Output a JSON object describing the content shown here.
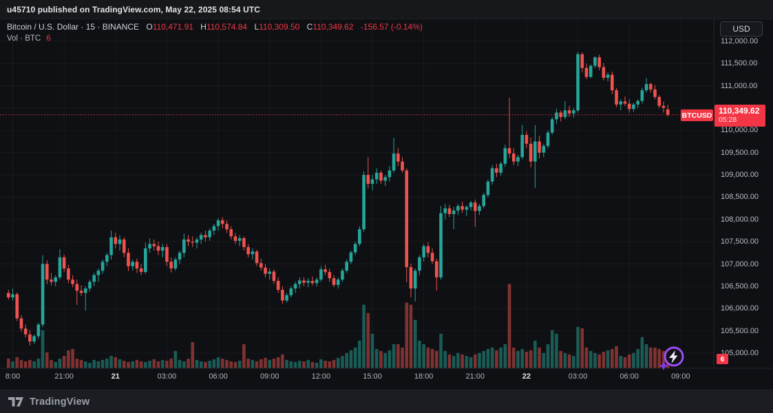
{
  "publish_bar": {
    "text": "u45710 published on TradingView.com, May 22, 2025 08:54 UTC"
  },
  "legend": {
    "symbol_title": "Bitcoin / U.S. Dollar · 15 · BINANCE",
    "ohlc": {
      "o_label": "O",
      "o": "110,471.91",
      "h_label": "H",
      "h": "110,574.84",
      "l_label": "L",
      "l": "110,309.50",
      "c_label": "C",
      "c": "110,349.62",
      "change": "-156.57 (-0.14%)"
    },
    "volume_row": {
      "label": "Vol · BTC",
      "value": "6"
    }
  },
  "price_axis": {
    "currency_button": "USD",
    "ticks": [
      {
        "label": "112,000.00",
        "price": 112000
      },
      {
        "label": "111,500.00",
        "price": 111500
      },
      {
        "label": "111,000.00",
        "price": 111000
      },
      {
        "label": "110,500.00",
        "price": 110500
      },
      {
        "label": "110,000.00",
        "price": 110000
      },
      {
        "label": "109,500.00",
        "price": 109500
      },
      {
        "label": "109,000.00",
        "price": 109000
      },
      {
        "label": "108,500.00",
        "price": 108500
      },
      {
        "label": "108,000.00",
        "price": 108000
      },
      {
        "label": "107,500.00",
        "price": 107500
      },
      {
        "label": "107,000.00",
        "price": 107000
      },
      {
        "label": "106,500.00",
        "price": 106500
      },
      {
        "label": "106,000.00",
        "price": 106000
      },
      {
        "label": "105,500.00",
        "price": 105500
      },
      {
        "label": "105,000.00",
        "price": 105000
      }
    ],
    "last_price_badge": {
      "value": "110,349.62",
      "countdown": "05:28",
      "price": 110349.62
    },
    "symbol_tag": "BTCUSD",
    "volume_badge": "6"
  },
  "time_axis": {
    "labels": [
      {
        "text": "8:00",
        "index": 1,
        "bold": false
      },
      {
        "text": "21:00",
        "index": 13,
        "bold": false
      },
      {
        "text": "21",
        "index": 25,
        "bold": true
      },
      {
        "text": "03:00",
        "index": 37,
        "bold": false
      },
      {
        "text": "06:00",
        "index": 49,
        "bold": false
      },
      {
        "text": "09:00",
        "index": 61,
        "bold": false
      },
      {
        "text": "12:00",
        "index": 73,
        "bold": false
      },
      {
        "text": "15:00",
        "index": 85,
        "bold": false
      },
      {
        "text": "18:00",
        "index": 97,
        "bold": false
      },
      {
        "text": "21:00",
        "index": 109,
        "bold": false
      },
      {
        "text": "22",
        "index": 121,
        "bold": true
      },
      {
        "text": "03:00",
        "index": 133,
        "bold": false
      },
      {
        "text": "06:00",
        "index": 145,
        "bold": false
      },
      {
        "text": "09:00",
        "index": 157,
        "bold": false
      }
    ]
  },
  "footer": {
    "brand": "TradingView"
  },
  "colors": {
    "up": "#26a69a",
    "down": "#ef5350",
    "accent_red": "#f23645",
    "axis_text": "#b8bcc6",
    "grid": "rgba(255,255,255,0.045)",
    "boost_purple": "#9b4dfa"
  },
  "chart_data": {
    "type": "candlestick",
    "title": "Bitcoin / U.S. Dollar",
    "symbol": "BTCUSD",
    "exchange": "BINANCE",
    "interval_minutes": 15,
    "last": {
      "open": 110471.91,
      "high": 110574.84,
      "low": 110309.5,
      "close": 110349.62,
      "change": -156.57,
      "change_pct": -0.14
    },
    "y_axis": {
      "min": 104660,
      "max": 112494,
      "tick_step": 500,
      "unit": "USD"
    },
    "volume_unit": "BTC",
    "last_volume": 6,
    "legend_note": "candles are [open,high,low,close,volumeBTC], 15-minute bars ending May 22 2025 09:00 UTC",
    "candles": [
      [
        106350,
        106420,
        106200,
        106250,
        6.0
      ],
      [
        106250,
        106450,
        106180,
        106320,
        4.3
      ],
      [
        106320,
        106360,
        105720,
        105780,
        6.9
      ],
      [
        105780,
        105850,
        105480,
        105550,
        5.2
      ],
      [
        105550,
        105640,
        105350,
        105420,
        4.3
      ],
      [
        105420,
        105520,
        105170,
        105260,
        5.2
      ],
      [
        105260,
        105420,
        105210,
        105380,
        4.3
      ],
      [
        105380,
        105680,
        105320,
        105640,
        6.0
      ],
      [
        105640,
        107200,
        105580,
        107000,
        23.7
      ],
      [
        107000,
        107080,
        106550,
        106650,
        9.9
      ],
      [
        106650,
        106800,
        106520,
        106600,
        5.2
      ],
      [
        106600,
        106750,
        106500,
        106700,
        3.9
      ],
      [
        106700,
        107330,
        106650,
        107150,
        6.0
      ],
      [
        107150,
        107210,
        106820,
        106900,
        7.7
      ],
      [
        106900,
        106980,
        106570,
        106650,
        11.2
      ],
      [
        106650,
        106750,
        106480,
        106550,
        12.0
      ],
      [
        106550,
        106650,
        106080,
        106400,
        6.0
      ],
      [
        106400,
        106520,
        106280,
        106350,
        5.2
      ],
      [
        106350,
        106500,
        105950,
        106450,
        4.3
      ],
      [
        106450,
        106650,
        106380,
        106600,
        3.4
      ],
      [
        106600,
        106800,
        106500,
        106750,
        5.2
      ],
      [
        106750,
        106900,
        106600,
        106850,
        4.3
      ],
      [
        106850,
        107100,
        106780,
        107050,
        5.2
      ],
      [
        107050,
        107250,
        106950,
        107200,
        6.0
      ],
      [
        107200,
        107750,
        107100,
        107600,
        7.7
      ],
      [
        107600,
        107700,
        107350,
        107450,
        6.9
      ],
      [
        107450,
        107650,
        107300,
        107550,
        5.6
      ],
      [
        107550,
        107600,
        107150,
        107250,
        4.7
      ],
      [
        107250,
        107350,
        106840,
        106950,
        3.9
      ],
      [
        106950,
        107100,
        106850,
        107050,
        4.3
      ],
      [
        107050,
        107120,
        106800,
        106900,
        5.2
      ],
      [
        106900,
        107000,
        106750,
        106820,
        4.3
      ],
      [
        106820,
        107480,
        106780,
        107350,
        3.9
      ],
      [
        107350,
        107570,
        107250,
        107450,
        4.7
      ],
      [
        107450,
        107550,
        107300,
        107400,
        5.6
      ],
      [
        107400,
        107500,
        107200,
        107300,
        4.3
      ],
      [
        107300,
        107450,
        107150,
        107380,
        5.2
      ],
      [
        107380,
        107450,
        106950,
        107050,
        4.7
      ],
      [
        107050,
        107150,
        106810,
        106900,
        6.0
      ],
      [
        106900,
        107150,
        106850,
        107100,
        10.8
      ],
      [
        107100,
        107300,
        107000,
        107250,
        5.2
      ],
      [
        107250,
        107680,
        107150,
        107550,
        4.3
      ],
      [
        107550,
        107650,
        107400,
        107500,
        6.0
      ],
      [
        107500,
        107620,
        107380,
        107480,
        16.3
      ],
      [
        107480,
        107600,
        107350,
        107550,
        5.2
      ],
      [
        107550,
        107700,
        107450,
        107650,
        4.3
      ],
      [
        107650,
        107750,
        107500,
        107600,
        3.9
      ],
      [
        107600,
        107800,
        107520,
        107750,
        4.7
      ],
      [
        107750,
        107900,
        107650,
        107850,
        5.6
      ],
      [
        107850,
        108030,
        107750,
        107980,
        6.9
      ],
      [
        107980,
        108050,
        107800,
        107900,
        6.0
      ],
      [
        107900,
        107980,
        107700,
        107780,
        5.2
      ],
      [
        107780,
        107850,
        107550,
        107620,
        4.3
      ],
      [
        107620,
        107700,
        107450,
        107520,
        3.9
      ],
      [
        107520,
        107650,
        107400,
        107580,
        4.7
      ],
      [
        107580,
        107620,
        107300,
        107380,
        15.0
      ],
      [
        107380,
        107450,
        107150,
        107220,
        6.0
      ],
      [
        107220,
        107350,
        107100,
        107280,
        5.2
      ],
      [
        107280,
        107320,
        106950,
        107020,
        4.3
      ],
      [
        107020,
        107120,
        106850,
        106920,
        5.6
      ],
      [
        106920,
        107000,
        106700,
        106780,
        6.5
      ],
      [
        106780,
        106900,
        106650,
        106830,
        5.2
      ],
      [
        106830,
        106880,
        106550,
        106620,
        6.0
      ],
      [
        106620,
        106700,
        106350,
        106420,
        6.9
      ],
      [
        106420,
        106500,
        106100,
        106180,
        8.6
      ],
      [
        106180,
        106350,
        106130,
        106300,
        5.2
      ],
      [
        106300,
        106500,
        106250,
        106450,
        4.3
      ],
      [
        106450,
        106600,
        106350,
        106550,
        3.9
      ],
      [
        106550,
        106700,
        106450,
        106630,
        4.7
      ],
      [
        106630,
        106700,
        106500,
        106580,
        4.3
      ],
      [
        106580,
        106680,
        106480,
        106620,
        5.2
      ],
      [
        106620,
        106720,
        106520,
        106570,
        3.9
      ],
      [
        106570,
        106700,
        106500,
        106650,
        3.4
      ],
      [
        106650,
        106950,
        106600,
        106880,
        5.6
      ],
      [
        106880,
        106980,
        106750,
        106820,
        4.7
      ],
      [
        106820,
        106900,
        106600,
        106680,
        4.3
      ],
      [
        106680,
        106750,
        106480,
        106530,
        5.2
      ],
      [
        106530,
        106700,
        106450,
        106650,
        6.5
      ],
      [
        106650,
        106900,
        106600,
        106850,
        7.7
      ],
      [
        106850,
        107100,
        106800,
        107050,
        9.5
      ],
      [
        107050,
        107300,
        107000,
        107260,
        11.2
      ],
      [
        107260,
        107500,
        107200,
        107450,
        12.9
      ],
      [
        107450,
        107850,
        107400,
        107780,
        17.2
      ],
      [
        107780,
        109080,
        107720,
        109000,
        39.6
      ],
      [
        109000,
        109400,
        108700,
        108800,
        34.4
      ],
      [
        108800,
        109000,
        108650,
        108900,
        21.5
      ],
      [
        108900,
        109150,
        108800,
        109050,
        12.0
      ],
      [
        109050,
        109100,
        108800,
        108870,
        10.8
      ],
      [
        108870,
        109000,
        108750,
        108950,
        9.5
      ],
      [
        108950,
        109200,
        108850,
        109100,
        11.2
      ],
      [
        109100,
        109830,
        109050,
        109480,
        15.0
      ],
      [
        109480,
        109600,
        109200,
        109300,
        15.0
      ],
      [
        109300,
        109400,
        109050,
        109100,
        12.9
      ],
      [
        109100,
        109150,
        106590,
        106930,
        40.9
      ],
      [
        106930,
        107010,
        106250,
        106450,
        39.6
      ],
      [
        106450,
        106900,
        106160,
        106850,
        30.1
      ],
      [
        106850,
        107200,
        106750,
        107150,
        17.2
      ],
      [
        107150,
        107450,
        107050,
        107400,
        15.0
      ],
      [
        107400,
        107490,
        107150,
        107250,
        12.9
      ],
      [
        107250,
        107350,
        107000,
        107060,
        12.0
      ],
      [
        107060,
        107120,
        106400,
        106700,
        10.8
      ],
      [
        106700,
        108300,
        106650,
        108140,
        21.5
      ],
      [
        108140,
        108350,
        108000,
        108250,
        10.8
      ],
      [
        108250,
        108330,
        108050,
        108120,
        8.6
      ],
      [
        108120,
        108280,
        107780,
        108200,
        7.7
      ],
      [
        108200,
        108350,
        108100,
        108300,
        9.5
      ],
      [
        108300,
        108400,
        108150,
        108220,
        8.6
      ],
      [
        108220,
        108320,
        108080,
        108280,
        7.7
      ],
      [
        108280,
        108420,
        108200,
        108380,
        6.9
      ],
      [
        108380,
        108450,
        107830,
        108190,
        8.6
      ],
      [
        108190,
        108350,
        108100,
        108300,
        9.5
      ],
      [
        108300,
        108600,
        108250,
        108550,
        10.8
      ],
      [
        108550,
        108900,
        108500,
        108850,
        12.0
      ],
      [
        108850,
        109220,
        108780,
        109150,
        12.9
      ],
      [
        109150,
        109250,
        108950,
        109050,
        11.2
      ],
      [
        109050,
        109300,
        108980,
        109250,
        12.9
      ],
      [
        109250,
        109680,
        109180,
        109600,
        15.0
      ],
      [
        109600,
        110730,
        109380,
        109480,
        52.5
      ],
      [
        109480,
        109600,
        109220,
        109300,
        12.9
      ],
      [
        109300,
        109450,
        109200,
        109400,
        10.8
      ],
      [
        109400,
        110120,
        109350,
        109900,
        12.0
      ],
      [
        109900,
        109980,
        109600,
        109700,
        10.3
      ],
      [
        109700,
        109840,
        109170,
        109300,
        11.2
      ],
      [
        109300,
        110120,
        108710,
        109750,
        17.2
      ],
      [
        109750,
        109880,
        109370,
        109500,
        12.9
      ],
      [
        109500,
        109700,
        109400,
        109650,
        9.5
      ],
      [
        109650,
        110000,
        109600,
        109950,
        15.0
      ],
      [
        109950,
        110300,
        109900,
        110250,
        23.7
      ],
      [
        110250,
        110480,
        110150,
        110400,
        21.5
      ],
      [
        110400,
        110450,
        110200,
        110300,
        10.8
      ],
      [
        110300,
        110660,
        110250,
        110450,
        9.5
      ],
      [
        110450,
        110550,
        110300,
        110380,
        8.6
      ],
      [
        110380,
        110500,
        110280,
        110450,
        7.7
      ],
      [
        110450,
        111760,
        110400,
        111710,
        25.8
      ],
      [
        111710,
        111750,
        111300,
        111400,
        24.9
      ],
      [
        111400,
        111500,
        111150,
        111200,
        12.9
      ],
      [
        111200,
        111480,
        111170,
        111450,
        10.8
      ],
      [
        111450,
        111660,
        111400,
        111640,
        9.5
      ],
      [
        111640,
        111700,
        111350,
        111420,
        8.6
      ],
      [
        111420,
        111510,
        111120,
        111180,
        10.3
      ],
      [
        111180,
        111300,
        111100,
        111250,
        11.2
      ],
      [
        111250,
        111320,
        110810,
        110900,
        12.0
      ],
      [
        110900,
        110950,
        110520,
        110580,
        13.8
      ],
      [
        110580,
        110700,
        110450,
        110650,
        7.7
      ],
      [
        110650,
        110760,
        110550,
        110600,
        6.9
      ],
      [
        110600,
        110700,
        110400,
        110480,
        8.6
      ],
      [
        110480,
        110620,
        110420,
        110580,
        9.5
      ],
      [
        110580,
        110700,
        110500,
        110660,
        12.0
      ],
      [
        110660,
        110960,
        110600,
        110900,
        19.4
      ],
      [
        110900,
        111180,
        110850,
        111040,
        15.0
      ],
      [
        111040,
        111070,
        110850,
        110920,
        12.9
      ],
      [
        110920,
        111020,
        110700,
        110750,
        12.9
      ],
      [
        110750,
        110790,
        110500,
        110550,
        12.0
      ],
      [
        110550,
        110650,
        110400,
        110506,
        10.8
      ],
      [
        110471.91,
        110574.84,
        110309.5,
        110349.62,
        6.0
      ]
    ]
  }
}
